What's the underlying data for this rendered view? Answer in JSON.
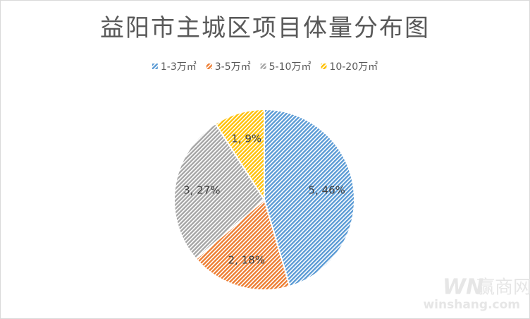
{
  "chart_data": {
    "type": "pie",
    "title": "益阳市主城区项目体量分布图",
    "categories": [
      "1-3万㎡",
      "3-5万㎡",
      "5-10万㎡",
      "10-20万㎡"
    ],
    "values": [
      5,
      2,
      3,
      1
    ],
    "value_labels": [
      "5, 46%",
      "2, 18%",
      "3, 27%",
      "1, 9%"
    ],
    "colors": [
      "#5b9bd5",
      "#ed7d31",
      "#a5a5a5",
      "#ffc000"
    ],
    "legend": "top"
  },
  "watermark": {
    "logo": "WN",
    "brand": "赢商网",
    "url": "winshang.com"
  }
}
